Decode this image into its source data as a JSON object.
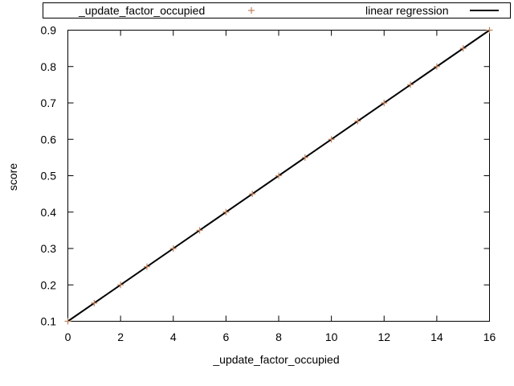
{
  "chart_data": {
    "type": "scatter",
    "xlabel": "_update_factor_occupied",
    "ylabel": "score",
    "xlim": [
      0,
      16
    ],
    "ylim": [
      0.1,
      0.9
    ],
    "x_ticks": [
      "0",
      "2",
      "4",
      "6",
      "8",
      "10",
      "12",
      "14",
      "16"
    ],
    "y_ticks": [
      "0.1",
      "0.2",
      "0.3",
      "0.4",
      "0.5",
      "0.6",
      "0.7",
      "0.8",
      "0.9"
    ],
    "grid": false,
    "legend_position": "top",
    "series": [
      {
        "name": "_update_factor_occupied",
        "kind": "points",
        "marker": "+",
        "color": "#c0825f",
        "x": [
          0,
          1,
          2,
          3,
          4,
          5,
          6,
          7,
          8,
          9,
          10,
          11,
          12,
          13,
          14,
          15,
          16
        ],
        "y": [
          0.1,
          0.15,
          0.2,
          0.25,
          0.3,
          0.35,
          0.4,
          0.45,
          0.5,
          0.55,
          0.6,
          0.65,
          0.7,
          0.75,
          0.8,
          0.85,
          0.9
        ]
      },
      {
        "name": "linear regression",
        "kind": "line",
        "color": "#000000",
        "x": [
          0,
          16
        ],
        "y": [
          0.1,
          0.9
        ]
      }
    ]
  }
}
